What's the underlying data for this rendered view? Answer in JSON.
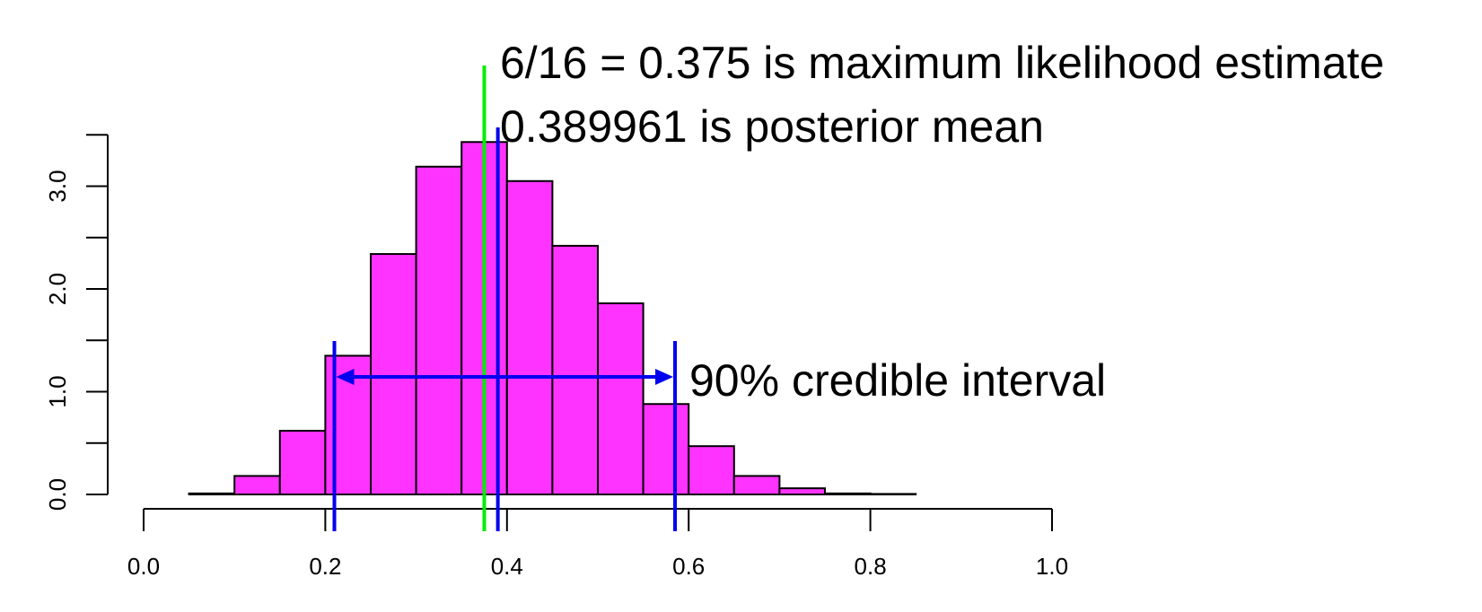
{
  "chart_data": {
    "type": "bar",
    "title": "",
    "xlabel": "",
    "ylabel": "",
    "xlim": [
      0.0,
      1.0
    ],
    "ylim": [
      0.0,
      3.5
    ],
    "grid": false,
    "bar_color": "#ff33ff",
    "bins": [
      {
        "x0": 0.05,
        "x1": 0.1,
        "value": 0.01
      },
      {
        "x0": 0.1,
        "x1": 0.15,
        "value": 0.18
      },
      {
        "x0": 0.15,
        "x1": 0.2,
        "value": 0.62
      },
      {
        "x0": 0.2,
        "x1": 0.25,
        "value": 1.35
      },
      {
        "x0": 0.25,
        "x1": 0.3,
        "value": 2.34
      },
      {
        "x0": 0.3,
        "x1": 0.35,
        "value": 3.19
      },
      {
        "x0": 0.35,
        "x1": 0.4,
        "value": 3.43
      },
      {
        "x0": 0.4,
        "x1": 0.45,
        "value": 3.05
      },
      {
        "x0": 0.45,
        "x1": 0.5,
        "value": 2.42
      },
      {
        "x0": 0.5,
        "x1": 0.55,
        "value": 1.86
      },
      {
        "x0": 0.55,
        "x1": 0.6,
        "value": 0.88
      },
      {
        "x0": 0.6,
        "x1": 0.65,
        "value": 0.47
      },
      {
        "x0": 0.65,
        "x1": 0.7,
        "value": 0.18
      },
      {
        "x0": 0.7,
        "x1": 0.75,
        "value": 0.06
      },
      {
        "x0": 0.75,
        "x1": 0.8,
        "value": 0.01
      },
      {
        "x0": 0.8,
        "x1": 0.85,
        "value": 0.005
      }
    ],
    "x_ticks": [
      0.0,
      0.2,
      0.4,
      0.6,
      0.8,
      1.0
    ],
    "x_tick_labels": [
      "0.0",
      "0.2",
      "0.4",
      "0.6",
      "0.8",
      "1.0"
    ],
    "y_ticks": [
      0.0,
      0.5,
      1.0,
      1.5,
      2.0,
      2.5,
      3.0,
      3.5
    ],
    "y_tick_labels": [
      "0.0",
      "1.0",
      "2.0",
      "3.0"
    ],
    "y_labeled_ticks": [
      0.0,
      1.0,
      2.0,
      3.0
    ],
    "mle": {
      "value": 0.375,
      "color": "#00ee00",
      "label": "6/16 = 0.375 is maximum likelihood estimate"
    },
    "posterior_mean": {
      "value": 0.389961,
      "color": "#0000ee",
      "label": "0.389961 is posterior mean"
    },
    "credible_interval": {
      "lower": 0.21,
      "upper": 0.585,
      "level": 1.1,
      "color": "#0000ee",
      "label": "90% credible interval"
    }
  }
}
